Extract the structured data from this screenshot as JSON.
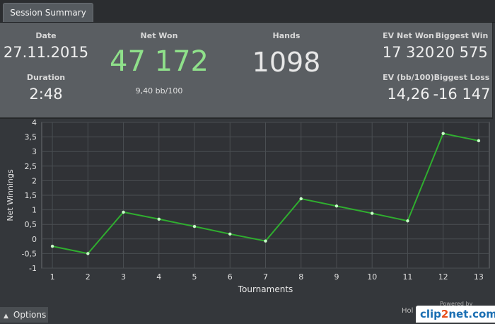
{
  "tabs": [
    {
      "label": "Session Summary"
    }
  ],
  "summary": {
    "date_label": "Date",
    "date_value": "27.11.2015",
    "duration_label": "Duration",
    "duration_value": "2:48",
    "netwon_label": "Net Won",
    "netwon_value": "47 172",
    "netwon_sub": "9,40 bb/100",
    "hands_label": "Hands",
    "hands_value": "1098",
    "ev_netwon_label": "EV Net Won",
    "ev_netwon_value": "17 320",
    "biggest_win_label": "Biggest Win",
    "biggest_win_value": "20 575",
    "ev_bb_label": "EV (bb/100)",
    "ev_bb_value": "14,26",
    "biggest_loss_label": "Biggest Loss",
    "biggest_loss_value": "-16 147"
  },
  "chart_data": {
    "type": "line",
    "xlabel": "Tournaments",
    "ylabel": "Net Winnings",
    "x": [
      1,
      2,
      3,
      4,
      5,
      6,
      7,
      8,
      9,
      10,
      11,
      12,
      13
    ],
    "series": [
      {
        "values": [
          -0.25,
          -0.5,
          0.92,
          0.68,
          0.43,
          0.17,
          -0.07,
          1.38,
          1.13,
          0.88,
          0.62,
          3.62,
          3.37
        ]
      }
    ],
    "xlim": [
      0.7,
      13.3
    ],
    "ylim": [
      -1,
      4
    ],
    "yticks": [
      4,
      3.5,
      3,
      2.5,
      2,
      1.5,
      1,
      0.5,
      0,
      -0.5,
      -1
    ],
    "ytick_labels": [
      "4",
      "3,5",
      "3",
      "2,5",
      "2",
      "1,5",
      "1",
      "0,5",
      "0",
      "-0,5",
      "-1"
    ],
    "xticks": [
      1,
      2,
      3,
      4,
      5,
      6,
      7,
      8,
      9,
      10,
      11,
      12,
      13
    ],
    "grid": true,
    "line_color": "#2fae2f",
    "point_color": "#c9ffc9"
  },
  "footer": {
    "options_label": "Options",
    "brand_text": "Hol",
    "powered_text": "Powered by",
    "watermark_a": "clip",
    "watermark_b": "2",
    "watermark_c": "net.com"
  },
  "colors": {
    "accent_green": "#8fe08a"
  }
}
